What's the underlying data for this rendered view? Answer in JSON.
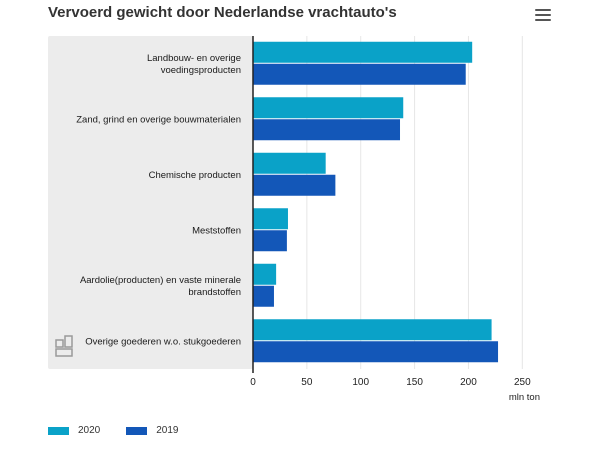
{
  "header": {
    "title": "Vervoerd gewicht door Nederlandse vrachtauto's",
    "menu_icon": "hamburger-menu-icon"
  },
  "logo_icon": "cbs-logo-icon",
  "colors": {
    "series_2020": "#0aa2c8",
    "series_2019": "#1357b8",
    "plot_background": "#ececec",
    "axis": "#222222"
  },
  "chart_data": {
    "type": "bar",
    "orientation": "horizontal",
    "title": "Vervoerd gewicht door Nederlandse vrachtauto's",
    "categories": [
      [
        "Landbouw- en overige",
        "voedingsproducten"
      ],
      [
        "Zand, grind en overige bouwmaterialen"
      ],
      [
        "Chemische producten"
      ],
      [
        "Meststoffen"
      ],
      [
        "Aardolie(producten) en vaste minerale",
        "brandstoffen"
      ],
      [
        "Overige goederen w.o. stukgoederen"
      ]
    ],
    "series": [
      {
        "name": "2020",
        "values": [
          203,
          139,
          67,
          32,
          21,
          221
        ]
      },
      {
        "name": "2019",
        "values": [
          197,
          136,
          76,
          31,
          19,
          227
        ]
      }
    ],
    "xlim": [
      0,
      250
    ],
    "xticks": [
      0,
      50,
      100,
      150,
      200,
      250
    ],
    "xlabel": "mln ton",
    "grid": true,
    "legend_position": "bottom-left"
  }
}
